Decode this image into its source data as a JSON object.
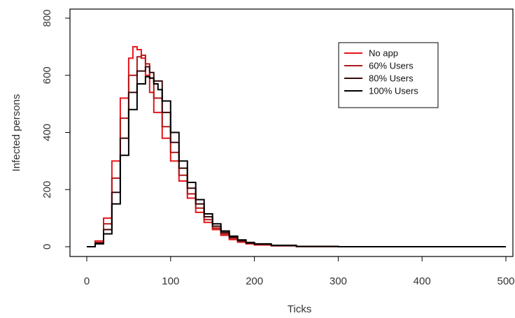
{
  "chart_data": {
    "type": "line",
    "title": "",
    "xlabel": "Ticks",
    "ylabel": "Infected persons",
    "xlim": [
      0,
      500
    ],
    "ylim": [
      0,
      800
    ],
    "xticks": [
      0,
      100,
      200,
      300,
      400,
      500
    ],
    "yticks": [
      0,
      200,
      400,
      600,
      800
    ],
    "xtick_labels": [
      "0",
      "100",
      "200",
      "300",
      "400",
      "500"
    ],
    "ytick_labels": [
      "0",
      "200",
      "400",
      "600",
      "800"
    ],
    "grid": false,
    "legend_position": "top-right",
    "series": [
      {
        "name": "No app",
        "color": "#e8141b",
        "x": [
          0,
          10,
          20,
          30,
          40,
          50,
          55,
          60,
          65,
          70,
          75,
          80,
          90,
          100,
          110,
          120,
          130,
          140,
          150,
          160,
          170,
          180,
          190,
          200,
          220,
          250,
          300,
          400,
          500
        ],
        "y": [
          0,
          20,
          100,
          300,
          520,
          660,
          700,
          690,
          660,
          600,
          540,
          470,
          380,
          300,
          230,
          170,
          120,
          85,
          60,
          40,
          25,
          16,
          10,
          6,
          3,
          1,
          0,
          0,
          0
        ]
      },
      {
        "name": "60% Users",
        "color": "#b01a1a",
        "x": [
          0,
          10,
          20,
          30,
          40,
          50,
          60,
          65,
          70,
          75,
          80,
          90,
          100,
          110,
          120,
          130,
          140,
          150,
          160,
          170,
          180,
          190,
          200,
          220,
          250,
          300,
          400,
          500
        ],
        "y": [
          0,
          15,
          80,
          240,
          450,
          600,
          665,
          670,
          640,
          590,
          520,
          420,
          330,
          250,
          185,
          135,
          95,
          65,
          45,
          30,
          19,
          12,
          8,
          4,
          1,
          0,
          0,
          0
        ]
      },
      {
        "name": "80% Users",
        "color": "#3a0a0a",
        "x": [
          0,
          10,
          20,
          30,
          40,
          50,
          60,
          70,
          75,
          80,
          90,
          100,
          110,
          120,
          130,
          140,
          150,
          160,
          170,
          180,
          190,
          200,
          220,
          250,
          300,
          400,
          500
        ],
        "y": [
          0,
          12,
          60,
          190,
          380,
          540,
          615,
          630,
          610,
          580,
          470,
          365,
          275,
          205,
          150,
          105,
          72,
          50,
          33,
          21,
          13,
          9,
          4,
          1,
          0,
          0,
          0
        ]
      },
      {
        "name": "100% Users",
        "color": "#000000",
        "x": [
          0,
          10,
          20,
          30,
          40,
          50,
          60,
          70,
          75,
          80,
          85,
          90,
          100,
          110,
          120,
          130,
          140,
          150,
          160,
          170,
          180,
          190,
          200,
          220,
          250,
          300,
          400,
          500
        ],
        "y": [
          0,
          10,
          45,
          150,
          320,
          480,
          570,
          595,
          590,
          570,
          550,
          510,
          400,
          300,
          225,
          165,
          115,
          80,
          55,
          37,
          24,
          15,
          10,
          5,
          1,
          0,
          0,
          0
        ]
      }
    ]
  }
}
